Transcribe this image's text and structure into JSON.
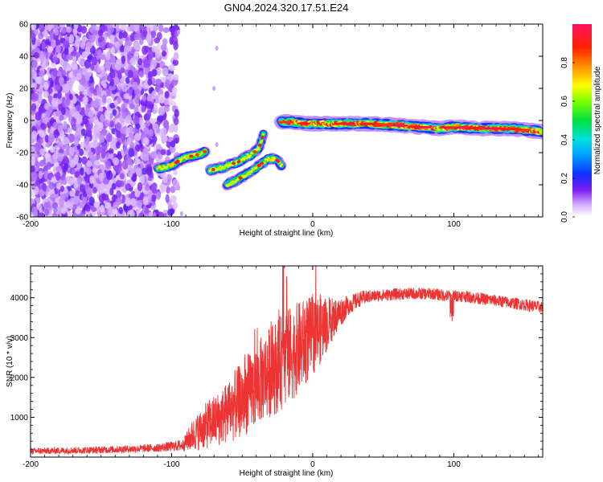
{
  "figure_title": "GN04.2024.320.17.51.E24",
  "chart_data": [
    {
      "type": "heatmap",
      "xlabel": "Height of straight line (km)",
      "ylabel": "Frequency (Hz)",
      "xlim": [
        -200,
        163
      ],
      "ylim": [
        -60,
        60
      ],
      "xticks": [
        -200,
        -100,
        0,
        100
      ],
      "yticks": [
        -60,
        -40,
        -20,
        0,
        20,
        40,
        60
      ],
      "colorbar": {
        "label": "Normalized spectral amplitude",
        "range": [
          0,
          1
        ],
        "ticks": [
          0.0,
          0.2,
          0.4,
          0.6,
          0.8
        ]
      },
      "signal_tracks": [
        {
          "x": [
            -110,
            -105,
            -100,
            -95,
            -90,
            -85,
            -80,
            -76
          ],
          "y": [
            -30,
            -29,
            -28,
            -25,
            -23,
            -22,
            -21,
            -19
          ],
          "amp": 0.45
        },
        {
          "x": [
            -73,
            -68,
            -63,
            -58,
            -53,
            -48,
            -43,
            -38,
            -35
          ],
          "y": [
            -31,
            -30,
            -29,
            -27,
            -26,
            -23,
            -21,
            -17,
            -9
          ],
          "amp": 0.35
        },
        {
          "x": [
            -61,
            -56,
            -50,
            -44,
            -38,
            -32,
            -26,
            -22
          ],
          "y": [
            -40,
            -38,
            -35,
            -32,
            -28,
            -24,
            -24,
            -28
          ],
          "amp": 0.45
        },
        {
          "x": [
            -22,
            -15,
            -5,
            5,
            20,
            40,
            60,
            75,
            90,
            100,
            120,
            140,
            163
          ],
          "y": [
            -1,
            -1,
            -2,
            -2,
            -2,
            -2,
            -3,
            -4,
            -5,
            -4,
            -5,
            -5,
            -7
          ],
          "amp": 0.85
        }
      ],
      "noise_region_x": [
        -200,
        -96
      ]
    },
    {
      "type": "line",
      "xlabel": "Height of straight line (km)",
      "ylabel": "SNR (10 * v/v)",
      "xlim": [
        -200,
        163
      ],
      "ylim": [
        0,
        4800
      ],
      "xticks": [
        -200,
        -100,
        0,
        100
      ],
      "yticks": [
        1000,
        2000,
        3000,
        4000
      ],
      "series": [
        {
          "color": "#ee3333",
          "envelope_x": [
            -200,
            -150,
            -110,
            -92,
            -85,
            -75,
            -65,
            -55,
            -45,
            -35,
            -25,
            -15,
            -5,
            5,
            15,
            25,
            35,
            45,
            55,
            65,
            75,
            85,
            95,
            105,
            115,
            125,
            135,
            145,
            155,
            163
          ],
          "envelope_y": [
            150,
            180,
            230,
            300,
            550,
            800,
            1000,
            1300,
            1600,
            2000,
            2300,
            2600,
            2900,
            3200,
            3500,
            3800,
            4000,
            4050,
            4080,
            4100,
            4100,
            4100,
            4050,
            4050,
            4000,
            3950,
            3900,
            3850,
            3800,
            3750
          ],
          "noise_amplitude_y": [
            80,
            90,
            100,
            150,
            400,
            600,
            700,
            900,
            1000,
            1100,
            1200,
            1200,
            1100,
            900,
            500,
            250,
            180,
            150,
            150,
            150,
            150,
            150,
            150,
            150,
            150,
            150,
            150,
            150,
            150,
            150
          ]
        }
      ]
    }
  ]
}
